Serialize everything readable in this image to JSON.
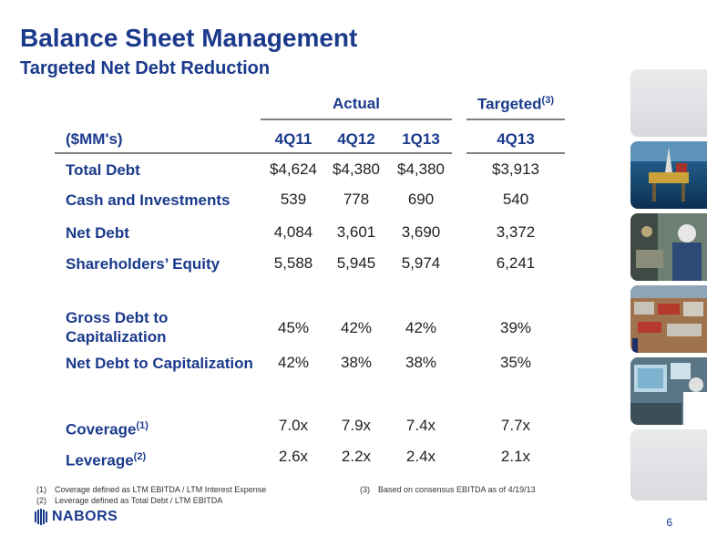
{
  "header": {
    "title": "Balance Sheet Management",
    "subtitle": "Targeted Net Debt Reduction"
  },
  "table": {
    "groups": [
      {
        "label": "Actual"
      },
      {
        "label": "Targeted",
        "sup": "(3)"
      }
    ],
    "unit_label": "($MM's)",
    "columns": [
      "4Q11",
      "4Q12",
      "1Q13",
      "4Q13"
    ],
    "rows": [
      {
        "label": "Total Debt",
        "sup": "",
        "values": [
          "$4,624",
          "$4,380",
          "$4,380",
          "$3,913"
        ]
      },
      {
        "label": "Cash and Investments",
        "sup": "",
        "values": [
          "539",
          "778",
          "690",
          "540"
        ]
      },
      {
        "label": "Net Debt",
        "sup": "",
        "values": [
          "4,084",
          "3,601",
          "3,690",
          "3,372"
        ]
      },
      {
        "label": "Shareholders’ Equity",
        "sup": "",
        "values": [
          "5,588",
          "5,945",
          "5,974",
          "6,241"
        ]
      },
      {
        "label": "Gross Debt to Capitalization",
        "sup": "",
        "values": [
          "45%",
          "42%",
          "42%",
          "39%"
        ]
      },
      {
        "label": "Net Debt to Capitalization",
        "sup": "",
        "values": [
          "42%",
          "38%",
          "38%",
          "35%"
        ]
      },
      {
        "label": "Coverage",
        "sup": "(1)",
        "values": [
          "7.0x",
          "7.9x",
          "7.4x",
          "7.7x"
        ]
      },
      {
        "label": "Leverage",
        "sup": "(2)",
        "values": [
          "2.6x",
          "2.2x",
          "2.4x",
          "2.1x"
        ]
      }
    ]
  },
  "footnotes": [
    {
      "num": "(1)",
      "text": "Coverage defined as LTM EBITDA / LTM Interest Expense"
    },
    {
      "num": "(2)",
      "text": "Leverage defined as Total Debt / LTM EBITDA"
    },
    {
      "num": "(3)",
      "text": "Based on consensus EBITDA as of 4/19/13"
    }
  ],
  "footer": {
    "logo_text": "NABORS",
    "page_number": "6"
  },
  "colors": {
    "primary": "#1b3a8c",
    "rule": "#7f8080"
  },
  "sidebar_images": [
    "offshore-rig-photo",
    "worker-photo",
    "drilling-yard-photo",
    "control-room-photo"
  ]
}
